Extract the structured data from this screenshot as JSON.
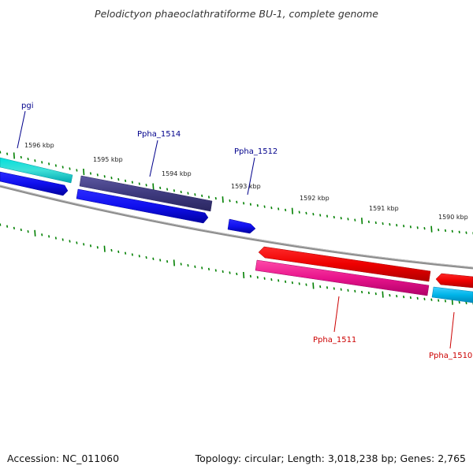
{
  "title": "Pelodictyon phaeoclathratiforme BU-1, complete genome",
  "footer": {
    "accession": "Accession: NC_011060",
    "summary": "Topology: circular; Length: 3,018,238 bp; Genes: 2,765"
  },
  "kbp_labels": [
    "1596 kbp",
    "1595 kbp",
    "1594 kbp",
    "1593 kbp",
    "1592 kbp",
    "1591 kbp",
    "1590 kbp"
  ],
  "genes": [
    {
      "label": "pgi",
      "color": "#00008b"
    },
    {
      "label": "Ppha_1514",
      "color": "#00008b"
    },
    {
      "label": "Ppha_1512",
      "color": "#00008b"
    },
    {
      "label": "Ppha_1511",
      "color": "#cc0000"
    },
    {
      "label": "Ppha_1510",
      "color": "#cc0000"
    }
  ],
  "colors": {
    "backbone": "#808080",
    "tick": "#008000",
    "teal_gene": "#00cccc",
    "blue_gene": "#0000ee",
    "slate_gene": "#3e3a7e",
    "red_gene": "#ee0000",
    "pink_gene": "#e8148c",
    "lightblue_gene": "#00b4e8"
  }
}
